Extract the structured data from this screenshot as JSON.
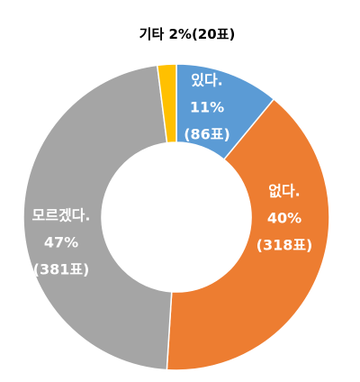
{
  "chart_data": {
    "type": "donut",
    "categories": [
      "있다.",
      "없다.",
      "모르겠다.",
      "기타"
    ],
    "values": [
      11,
      40,
      47,
      2
    ],
    "value_labels": [
      "11%",
      "40%",
      "47%",
      "2%"
    ],
    "votes": [
      86,
      318,
      381,
      20
    ],
    "vote_labels": [
      "(86표)",
      "(318표)",
      "(381표)",
      "(20표)"
    ],
    "colors": [
      "#5b9bd5",
      "#ed7d31",
      "#a5a5a5",
      "#ffc000"
    ]
  }
}
